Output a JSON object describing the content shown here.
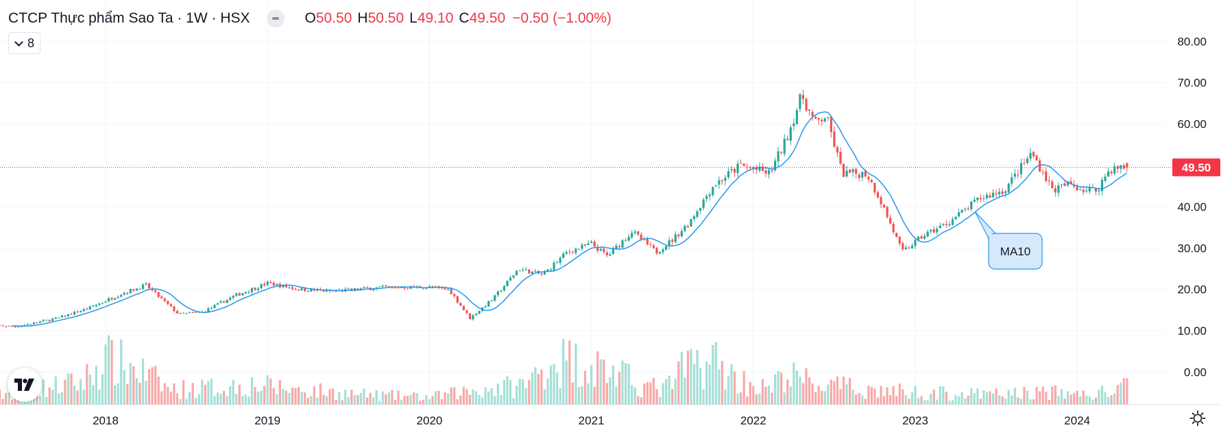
{
  "header": {
    "symbol_title": "CTCP Thực phẩm Sao Ta · 1W · HSX",
    "open_label": "O",
    "open_value": "50.50",
    "high_label": "H",
    "high_value": "50.50",
    "low_label": "L",
    "low_value": "49.10",
    "close_label": "C",
    "close_value": "49.50",
    "change": "−0.50 (−1.00%)",
    "indicators_count": "8"
  },
  "price_tag": "49.50",
  "ma_label": "MA10",
  "colors": {
    "up": "#26a69a",
    "down": "#ef5350",
    "vol_up": "#a5dfd6",
    "vol_down": "#f7a9a7",
    "ma": "#2196f3",
    "price_line": "#f23645",
    "grid": "#f0f3fa"
  },
  "icons": {
    "logo": "tradingview-logo-icon",
    "settings": "gear-icon",
    "visibility": "eye-icon",
    "collapse": "chevron-down-icon"
  },
  "chart_data": {
    "type": "candlestick",
    "timeframe": "1W",
    "x_range": [
      2017.25,
      2024.5
    ],
    "ylim": [
      -10,
      85
    ],
    "y_ticks": [
      "80.00",
      "70.00",
      "60.00",
      "50.00",
      "40.00",
      "30.00",
      "20.00",
      "10.00",
      "0.00"
    ],
    "x_ticks": [
      "2018",
      "2019",
      "2020",
      "2021",
      "2022",
      "2023",
      "2024"
    ],
    "last_price": 49.5,
    "price_keypoints": [
      [
        2017.25,
        11.3
      ],
      [
        2017.45,
        11.0
      ],
      [
        2017.7,
        13.0
      ],
      [
        2017.9,
        15.5
      ],
      [
        2018.1,
        19.0
      ],
      [
        2018.25,
        21.0
      ],
      [
        2018.45,
        14.0
      ],
      [
        2018.6,
        14.5
      ],
      [
        2018.8,
        18.5
      ],
      [
        2019.0,
        21.5
      ],
      [
        2019.2,
        20.0
      ],
      [
        2019.4,
        19.5
      ],
      [
        2019.7,
        20.5
      ],
      [
        2020.0,
        20.5
      ],
      [
        2020.12,
        20.0
      ],
      [
        2020.25,
        13.0
      ],
      [
        2020.4,
        18.0
      ],
      [
        2020.55,
        25.0
      ],
      [
        2020.7,
        23.5
      ],
      [
        2020.85,
        29.0
      ],
      [
        2021.0,
        31.0
      ],
      [
        2021.1,
        28.0
      ],
      [
        2021.25,
        34.0
      ],
      [
        2021.4,
        29.0
      ],
      [
        2021.5,
        32.0
      ],
      [
        2021.6,
        36.0
      ],
      [
        2021.75,
        45.0
      ],
      [
        2021.92,
        50.0
      ],
      [
        2022.1,
        48.0
      ],
      [
        2022.2,
        56.0
      ],
      [
        2022.3,
        67.0
      ],
      [
        2022.38,
        60.0
      ],
      [
        2022.45,
        62.0
      ],
      [
        2022.55,
        48.0
      ],
      [
        2022.7,
        48.0
      ],
      [
        2022.78,
        42.0
      ],
      [
        2022.92,
        29.0
      ],
      [
        2023.05,
        33.0
      ],
      [
        2023.2,
        36.0
      ],
      [
        2023.4,
        42.0
      ],
      [
        2023.55,
        44.0
      ],
      [
        2023.72,
        53.0
      ],
      [
        2023.85,
        44.0
      ],
      [
        2023.95,
        45.5
      ],
      [
        2024.05,
        44.0
      ],
      [
        2024.12,
        44.0
      ],
      [
        2024.2,
        49.0
      ],
      [
        2024.3,
        49.5
      ]
    ],
    "volume_keypoints": [
      [
        2017.25,
        1.5
      ],
      [
        2017.85,
        4.5
      ],
      [
        2018.0,
        9.0
      ],
      [
        2018.2,
        7.0
      ],
      [
        2018.4,
        3.0
      ],
      [
        2018.7,
        3.5
      ],
      [
        2018.9,
        4.0
      ],
      [
        2019.2,
        3.0
      ],
      [
        2019.6,
        2.0
      ],
      [
        2020.0,
        1.5
      ],
      [
        2020.3,
        3.0
      ],
      [
        2020.6,
        4.0
      ],
      [
        2020.75,
        9.0
      ],
      [
        2020.95,
        8.5
      ],
      [
        2021.1,
        7.0
      ],
      [
        2021.3,
        4.0
      ],
      [
        2021.45,
        3.0
      ],
      [
        2021.6,
        8.0
      ],
      [
        2021.75,
        9.0
      ],
      [
        2021.9,
        5.0
      ],
      [
        2022.1,
        3.0
      ],
      [
        2022.2,
        6.0
      ],
      [
        2022.4,
        4.0
      ],
      [
        2022.7,
        3.0
      ],
      [
        2023.0,
        2.5
      ],
      [
        2023.4,
        2.0
      ],
      [
        2023.8,
        2.5
      ],
      [
        2024.1,
        2.0
      ],
      [
        2024.3,
        3.5
      ]
    ],
    "ma_period": 10
  }
}
